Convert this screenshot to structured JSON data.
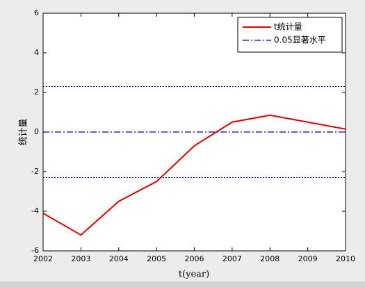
{
  "chart_data": {
    "type": "line",
    "x": [
      2002,
      2003,
      2004,
      2005,
      2006,
      2007,
      2008,
      2009,
      2010
    ],
    "xlabel": "t(year)",
    "ylabel": "统计量",
    "series": [
      {
        "name": "t统计量",
        "color": "#e00000",
        "style": "solid",
        "values": [
          -4.1,
          -5.2,
          -3.5,
          -2.5,
          -0.7,
          0.5,
          0.85,
          0.5,
          0.15
        ]
      },
      {
        "name": "0.05显著水平",
        "color": "#0000cc",
        "style": "dashdot",
        "values": [
          0,
          0,
          0,
          0,
          0,
          0,
          0,
          0,
          0
        ]
      }
    ],
    "reference_lines": [
      {
        "y": 2.3,
        "color": "#00008b",
        "style": "dotted"
      },
      {
        "y": -2.3,
        "color": "#00008b",
        "style": "dotted"
      }
    ],
    "xlim": [
      2002,
      2010
    ],
    "xticks": [
      2002,
      2003,
      2004,
      2005,
      2006,
      2007,
      2008,
      2009,
      2010
    ],
    "ylim": [
      -6,
      6
    ],
    "yticks": [
      -6,
      -4,
      -2,
      0,
      2,
      4,
      6
    ],
    "legend": "upper right",
    "grid": false
  }
}
